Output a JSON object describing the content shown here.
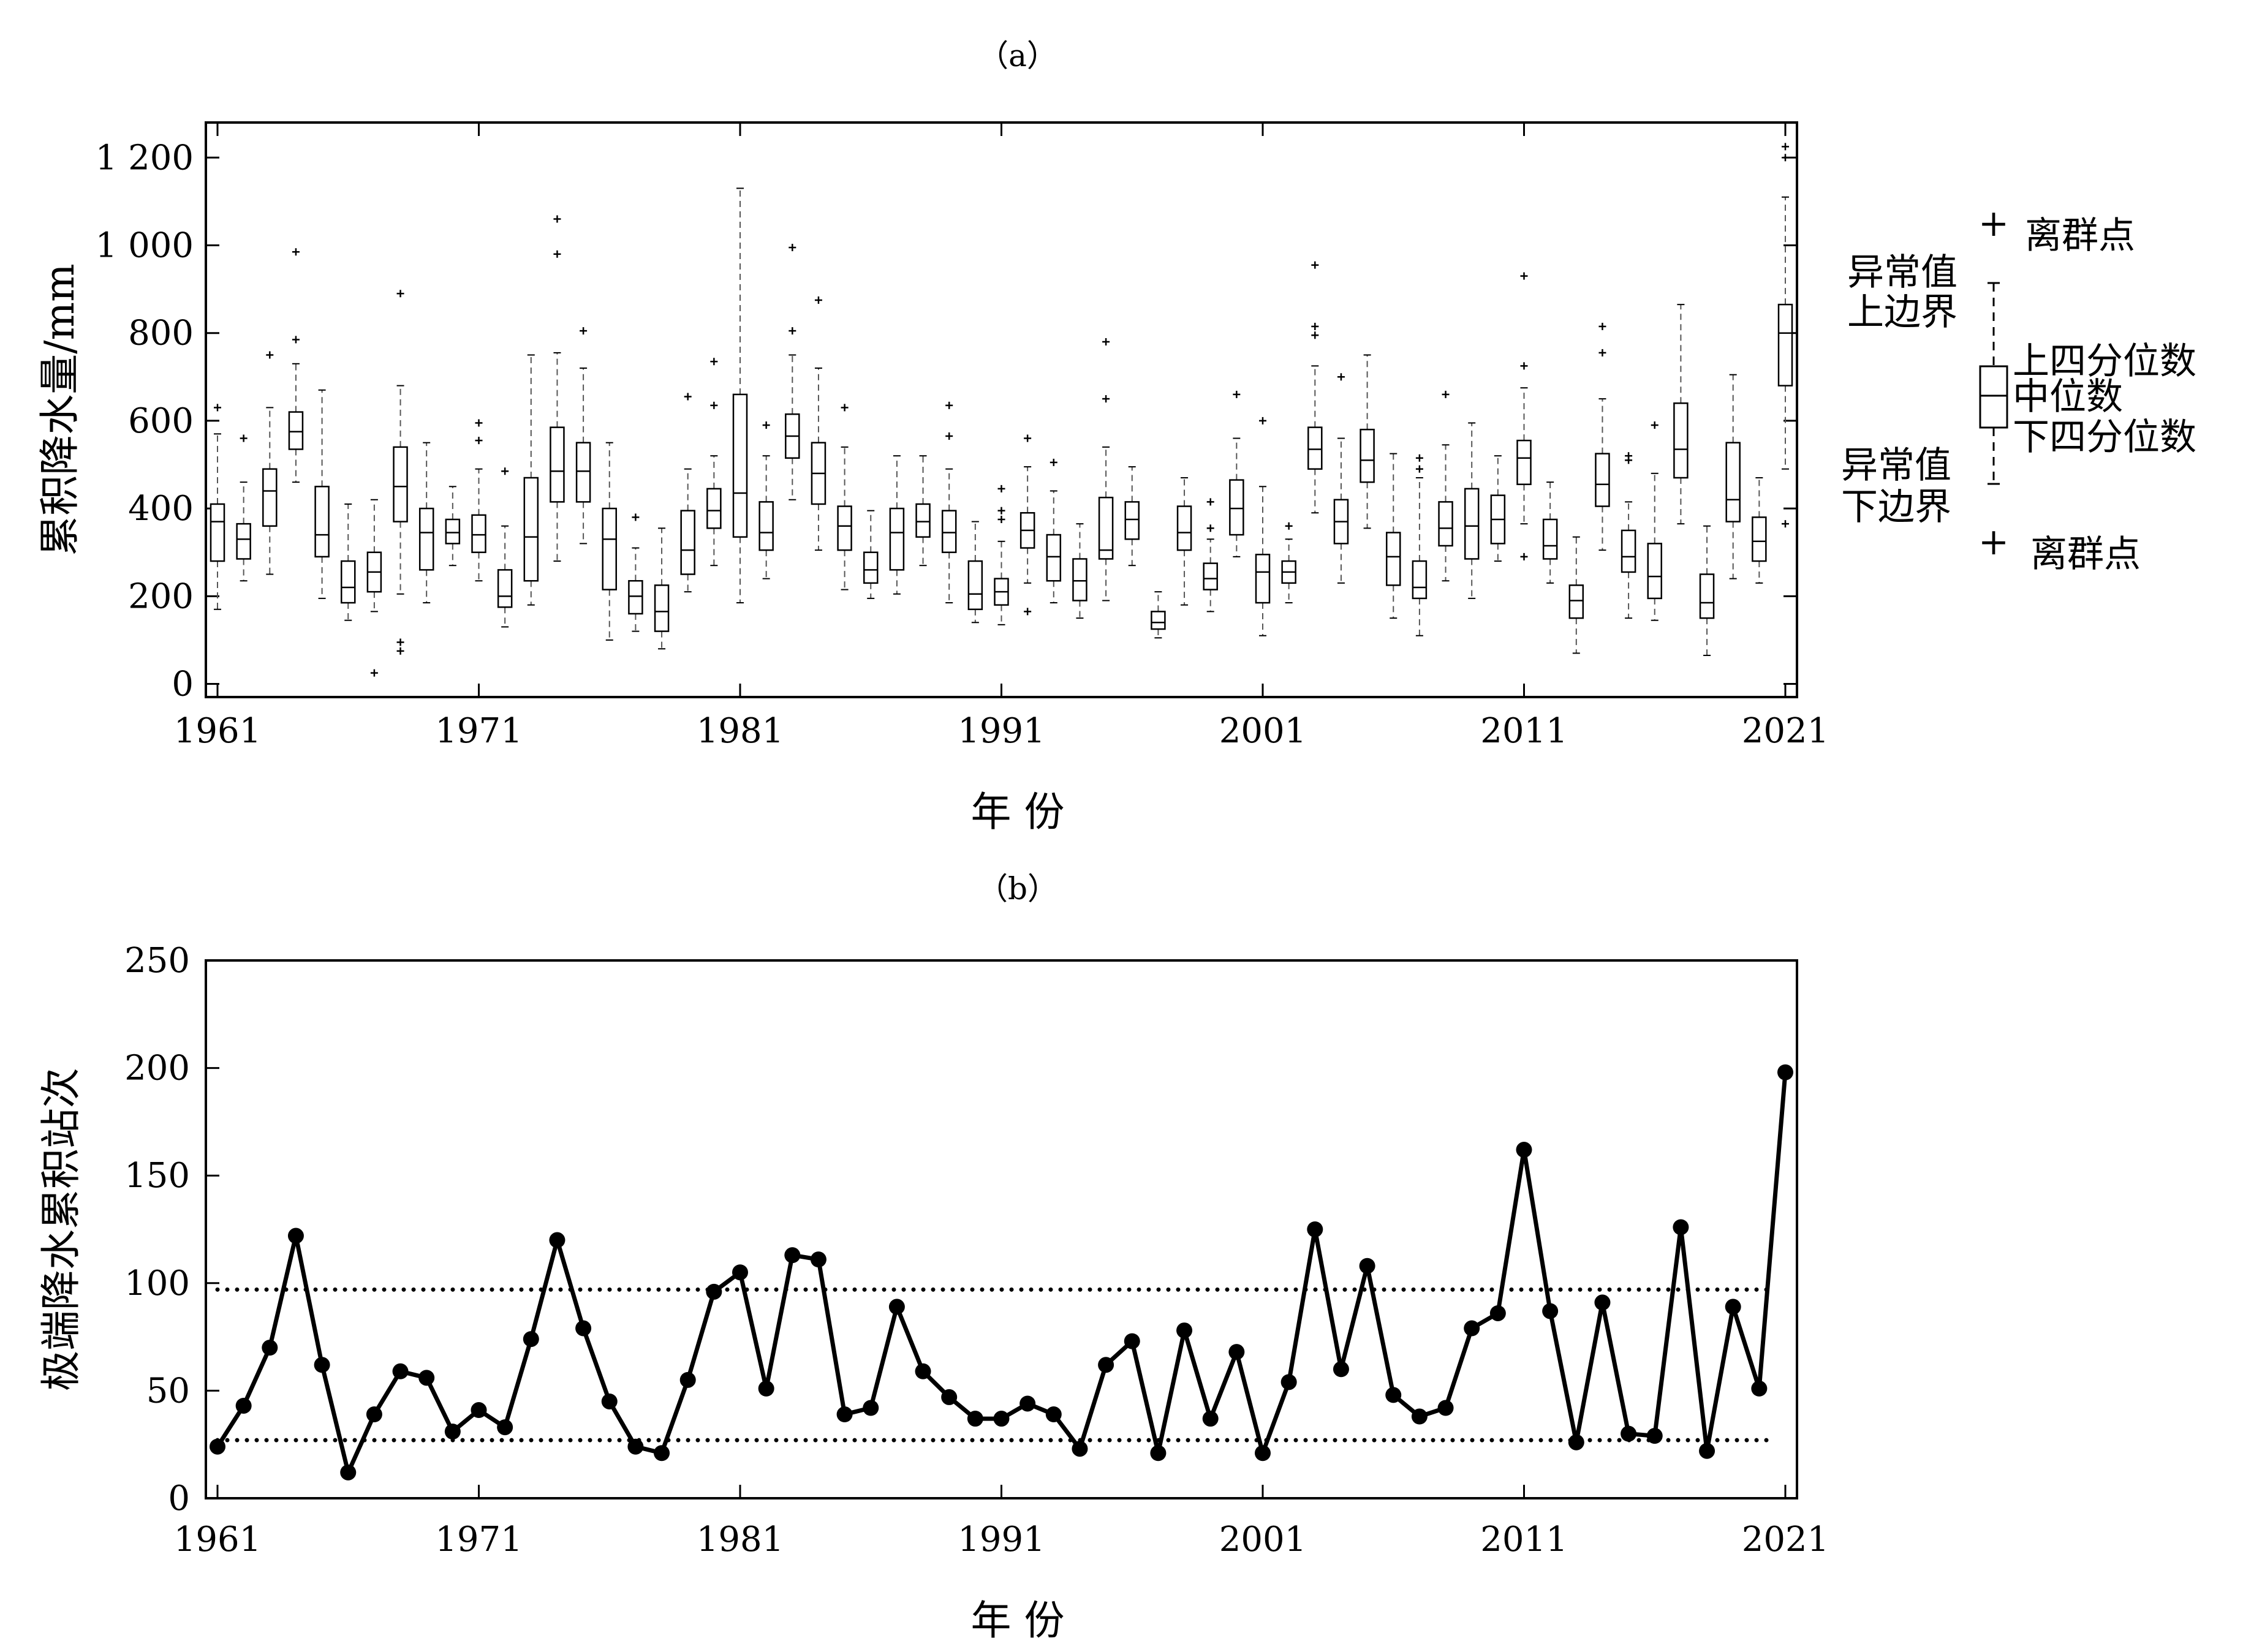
{
  "chart_data": [
    {
      "panel_label": "（a）",
      "type": "box",
      "xlabel": "年 份",
      "ylabel": "累积降水量/mm",
      "xlim": [
        1961,
        2021
      ],
      "ylim": [
        -30,
        1280
      ],
      "yticks": [
        0,
        200,
        400,
        600,
        800,
        1000,
        1200
      ],
      "ytick_labels": [
        "0",
        "200",
        "400",
        "600",
        "800",
        "1 000",
        "1 200"
      ],
      "xticks": [
        1961,
        1971,
        1981,
        1991,
        2001,
        2011,
        2021
      ],
      "legend": {
        "outlier_top": "离群点",
        "upper_whisker": "异常值上边界",
        "upper_whisker_lines": [
          "异常值",
          "上边界"
        ],
        "q3": "上四分位数",
        "median": "中位数",
        "q1": "下四分位数",
        "lower_whisker": "异常值下边界",
        "lower_whisker_lines": [
          "异常值",
          "下边界"
        ],
        "outlier_bottom": "离群点"
      },
      "boxes": [
        {
          "year": 1961,
          "whisker_low": 170,
          "q1": 280,
          "median": 370,
          "q3": 410,
          "whisker_high": 570,
          "outliers": [
            630
          ]
        },
        {
          "year": 1962,
          "whisker_low": 235,
          "q1": 285,
          "median": 330,
          "q3": 365,
          "whisker_high": 460,
          "outliers": [
            560
          ]
        },
        {
          "year": 1963,
          "whisker_low": 250,
          "q1": 360,
          "median": 440,
          "q3": 490,
          "whisker_high": 630,
          "outliers": [
            750
          ]
        },
        {
          "year": 1964,
          "whisker_low": 460,
          "q1": 535,
          "median": 575,
          "q3": 620,
          "whisker_high": 730,
          "outliers": [
            785,
            985
          ]
        },
        {
          "year": 1965,
          "whisker_low": 195,
          "q1": 290,
          "median": 340,
          "q3": 450,
          "whisker_high": 670,
          "outliers": []
        },
        {
          "year": 1966,
          "whisker_low": 145,
          "q1": 185,
          "median": 220,
          "q3": 280,
          "whisker_high": 410,
          "outliers": []
        },
        {
          "year": 1967,
          "whisker_low": 165,
          "q1": 210,
          "median": 255,
          "q3": 300,
          "whisker_high": 420,
          "outliers": [
            25
          ]
        },
        {
          "year": 1968,
          "whisker_low": 205,
          "q1": 370,
          "median": 450,
          "q3": 540,
          "whisker_high": 680,
          "outliers": [
            75,
            95,
            890
          ]
        },
        {
          "year": 1969,
          "whisker_low": 185,
          "q1": 260,
          "median": 345,
          "q3": 400,
          "whisker_high": 550,
          "outliers": []
        },
        {
          "year": 1970,
          "whisker_low": 270,
          "q1": 320,
          "median": 345,
          "q3": 375,
          "whisker_high": 450,
          "outliers": []
        },
        {
          "year": 1971,
          "whisker_low": 235,
          "q1": 300,
          "median": 340,
          "q3": 385,
          "whisker_high": 490,
          "outliers": [
            555,
            595
          ]
        },
        {
          "year": 1972,
          "whisker_low": 130,
          "q1": 175,
          "median": 200,
          "q3": 260,
          "whisker_high": 360,
          "outliers": [
            485
          ]
        },
        {
          "year": 1973,
          "whisker_low": 180,
          "q1": 235,
          "median": 335,
          "q3": 470,
          "whisker_high": 750,
          "outliers": []
        },
        {
          "year": 1974,
          "whisker_low": 280,
          "q1": 415,
          "median": 485,
          "q3": 585,
          "whisker_high": 755,
          "outliers": [
            980,
            1060
          ]
        },
        {
          "year": 1975,
          "whisker_low": 320,
          "q1": 415,
          "median": 485,
          "q3": 550,
          "whisker_high": 720,
          "outliers": [
            805
          ]
        },
        {
          "year": 1976,
          "whisker_low": 100,
          "q1": 215,
          "median": 330,
          "q3": 400,
          "whisker_high": 550,
          "outliers": []
        },
        {
          "year": 1977,
          "whisker_low": 120,
          "q1": 160,
          "median": 200,
          "q3": 235,
          "whisker_high": 310,
          "outliers": [
            380
          ]
        },
        {
          "year": 1978,
          "whisker_low": 80,
          "q1": 120,
          "median": 165,
          "q3": 225,
          "whisker_high": 355,
          "outliers": []
        },
        {
          "year": 1979,
          "whisker_low": 210,
          "q1": 250,
          "median": 305,
          "q3": 395,
          "whisker_high": 490,
          "outliers": [
            655
          ]
        },
        {
          "year": 1980,
          "whisker_low": 270,
          "q1": 355,
          "median": 395,
          "q3": 445,
          "whisker_high": 520,
          "outliers": [
            635,
            735
          ]
        },
        {
          "year": 1981,
          "whisker_low": 185,
          "q1": 335,
          "median": 435,
          "q3": 660,
          "whisker_high": 1130,
          "outliers": []
        },
        {
          "year": 1982,
          "whisker_low": 240,
          "q1": 305,
          "median": 345,
          "q3": 415,
          "whisker_high": 520,
          "outliers": [
            590
          ]
        },
        {
          "year": 1983,
          "whisker_low": 420,
          "q1": 515,
          "median": 565,
          "q3": 615,
          "whisker_high": 750,
          "outliers": [
            805,
            995
          ]
        },
        {
          "year": 1984,
          "whisker_low": 305,
          "q1": 410,
          "median": 480,
          "q3": 550,
          "whisker_high": 720,
          "outliers": [
            875
          ]
        },
        {
          "year": 1985,
          "whisker_low": 215,
          "q1": 305,
          "median": 360,
          "q3": 405,
          "whisker_high": 540,
          "outliers": [
            630
          ]
        },
        {
          "year": 1986,
          "whisker_low": 195,
          "q1": 230,
          "median": 260,
          "q3": 300,
          "whisker_high": 395,
          "outliers": []
        },
        {
          "year": 1987,
          "whisker_low": 205,
          "q1": 260,
          "median": 345,
          "q3": 400,
          "whisker_high": 520,
          "outliers": []
        },
        {
          "year": 1988,
          "whisker_low": 270,
          "q1": 335,
          "median": 370,
          "q3": 410,
          "whisker_high": 520,
          "outliers": []
        },
        {
          "year": 1989,
          "whisker_low": 185,
          "q1": 300,
          "median": 345,
          "q3": 395,
          "whisker_high": 490,
          "outliers": [
            565,
            635
          ]
        },
        {
          "year": 1990,
          "whisker_low": 140,
          "q1": 170,
          "median": 205,
          "q3": 280,
          "whisker_high": 370,
          "outliers": []
        },
        {
          "year": 1991,
          "whisker_low": 135,
          "q1": 180,
          "median": 210,
          "q3": 240,
          "whisker_high": 325,
          "outliers": [
            375,
            395,
            445
          ]
        },
        {
          "year": 1992,
          "whisker_low": 230,
          "q1": 310,
          "median": 350,
          "q3": 390,
          "whisker_high": 495,
          "outliers": [
            165,
            560
          ]
        },
        {
          "year": 1993,
          "whisker_low": 185,
          "q1": 235,
          "median": 290,
          "q3": 340,
          "whisker_high": 440,
          "outliers": [
            505
          ]
        },
        {
          "year": 1994,
          "whisker_low": 150,
          "q1": 190,
          "median": 235,
          "q3": 285,
          "whisker_high": 365,
          "outliers": []
        },
        {
          "year": 1995,
          "whisker_low": 190,
          "q1": 285,
          "median": 305,
          "q3": 425,
          "whisker_high": 540,
          "outliers": [
            650,
            780
          ]
        },
        {
          "year": 1996,
          "whisker_low": 270,
          "q1": 330,
          "median": 375,
          "q3": 415,
          "whisker_high": 495,
          "outliers": []
        },
        {
          "year": 1997,
          "whisker_low": 105,
          "q1": 125,
          "median": 140,
          "q3": 165,
          "whisker_high": 210,
          "outliers": []
        },
        {
          "year": 1998,
          "whisker_low": 180,
          "q1": 305,
          "median": 345,
          "q3": 405,
          "whisker_high": 470,
          "outliers": []
        },
        {
          "year": 1999,
          "whisker_low": 165,
          "q1": 215,
          "median": 240,
          "q3": 275,
          "whisker_high": 330,
          "outliers": [
            355,
            415
          ]
        },
        {
          "year": 2000,
          "whisker_low": 290,
          "q1": 340,
          "median": 400,
          "q3": 465,
          "whisker_high": 560,
          "outliers": [
            660
          ]
        },
        {
          "year": 2001,
          "whisker_low": 110,
          "q1": 185,
          "median": 255,
          "q3": 295,
          "whisker_high": 450,
          "outliers": [
            600
          ]
        },
        {
          "year": 2002,
          "whisker_low": 185,
          "q1": 230,
          "median": 255,
          "q3": 280,
          "whisker_high": 330,
          "outliers": [
            360
          ]
        },
        {
          "year": 2003,
          "whisker_low": 390,
          "q1": 490,
          "median": 535,
          "q3": 585,
          "whisker_high": 725,
          "outliers": [
            795,
            815,
            955
          ]
        },
        {
          "year": 2004,
          "whisker_low": 230,
          "q1": 320,
          "median": 370,
          "q3": 420,
          "whisker_high": 560,
          "outliers": [
            700
          ]
        },
        {
          "year": 2005,
          "whisker_low": 355,
          "q1": 460,
          "median": 510,
          "q3": 580,
          "whisker_high": 750,
          "outliers": []
        },
        {
          "year": 2006,
          "whisker_low": 150,
          "q1": 225,
          "median": 290,
          "q3": 345,
          "whisker_high": 525,
          "outliers": []
        },
        {
          "year": 2007,
          "whisker_low": 110,
          "q1": 195,
          "median": 220,
          "q3": 280,
          "whisker_high": 470,
          "outliers": [
            490,
            515
          ]
        },
        {
          "year": 2008,
          "whisker_low": 235,
          "q1": 315,
          "median": 355,
          "q3": 415,
          "whisker_high": 545,
          "outliers": [
            660
          ]
        },
        {
          "year": 2009,
          "whisker_low": 195,
          "q1": 285,
          "median": 360,
          "q3": 445,
          "whisker_high": 595,
          "outliers": []
        },
        {
          "year": 2010,
          "whisker_low": 280,
          "q1": 320,
          "median": 375,
          "q3": 430,
          "whisker_high": 520,
          "outliers": []
        },
        {
          "year": 2011,
          "whisker_low": 365,
          "q1": 455,
          "median": 515,
          "q3": 555,
          "whisker_high": 675,
          "outliers": [
            290,
            725,
            930
          ]
        },
        {
          "year": 2012,
          "whisker_low": 230,
          "q1": 285,
          "median": 315,
          "q3": 375,
          "whisker_high": 460,
          "outliers": []
        },
        {
          "year": 2013,
          "whisker_low": 70,
          "q1": 150,
          "median": 190,
          "q3": 225,
          "whisker_high": 335,
          "outliers": []
        },
        {
          "year": 2014,
          "whisker_low": 305,
          "q1": 405,
          "median": 455,
          "q3": 525,
          "whisker_high": 650,
          "outliers": [
            755,
            815
          ]
        },
        {
          "year": 2015,
          "whisker_low": 150,
          "q1": 255,
          "median": 290,
          "q3": 350,
          "whisker_high": 415,
          "outliers": [
            510,
            520
          ]
        },
        {
          "year": 2016,
          "whisker_low": 145,
          "q1": 195,
          "median": 245,
          "q3": 320,
          "whisker_high": 480,
          "outliers": [
            590
          ]
        },
        {
          "year": 2017,
          "whisker_low": 365,
          "q1": 470,
          "median": 535,
          "q3": 640,
          "whisker_high": 865,
          "outliers": []
        },
        {
          "year": 2018,
          "whisker_low": 65,
          "q1": 150,
          "median": 185,
          "q3": 250,
          "whisker_high": 360,
          "outliers": []
        },
        {
          "year": 2019,
          "whisker_low": 240,
          "q1": 370,
          "median": 420,
          "q3": 550,
          "whisker_high": 705,
          "outliers": []
        },
        {
          "year": 2020,
          "whisker_low": 230,
          "q1": 280,
          "median": 325,
          "q3": 380,
          "whisker_high": 470,
          "outliers": []
        },
        {
          "year": 2021,
          "whisker_low": 490,
          "q1": 680,
          "median": 800,
          "q3": 865,
          "whisker_high": 1110,
          "outliers": [
            365,
            1200,
            1225
          ]
        }
      ]
    },
    {
      "panel_label": "（b）",
      "type": "line",
      "xlabel": "年 份",
      "ylabel": "极端降水累积站次",
      "xlim": [
        1961,
        2021
      ],
      "ylim": [
        0,
        250
      ],
      "yticks": [
        0,
        50,
        100,
        150,
        200,
        250
      ],
      "xticks": [
        1961,
        1971,
        1981,
        1991,
        2001,
        2011,
        2021
      ],
      "reference_lines": [
        97,
        27
      ],
      "x": [
        1961,
        1962,
        1963,
        1964,
        1965,
        1966,
        1967,
        1968,
        1969,
        1970,
        1971,
        1972,
        1973,
        1974,
        1975,
        1976,
        1977,
        1978,
        1979,
        1980,
        1981,
        1982,
        1983,
        1984,
        1985,
        1986,
        1987,
        1988,
        1989,
        1990,
        1991,
        1992,
        1993,
        1994,
        1995,
        1996,
        1997,
        1998,
        1999,
        2000,
        2001,
        2002,
        2003,
        2004,
        2005,
        2006,
        2007,
        2008,
        2009,
        2010,
        2011,
        2012,
        2013,
        2014,
        2015,
        2016,
        2017,
        2018,
        2019,
        2020,
        2021
      ],
      "values": [
        24,
        43,
        70,
        122,
        62,
        12,
        39,
        59,
        56,
        31,
        41,
        33,
        74,
        120,
        79,
        45,
        24,
        21,
        55,
        96,
        105,
        51,
        113,
        111,
        39,
        42,
        89,
        59,
        47,
        37,
        37,
        44,
        39,
        23,
        62,
        73,
        21,
        78,
        37,
        68,
        21,
        54,
        125,
        60,
        108,
        48,
        38,
        42,
        79,
        86,
        162,
        87,
        26,
        91,
        30,
        29,
        126,
        22,
        89,
        51,
        198
      ]
    }
  ]
}
